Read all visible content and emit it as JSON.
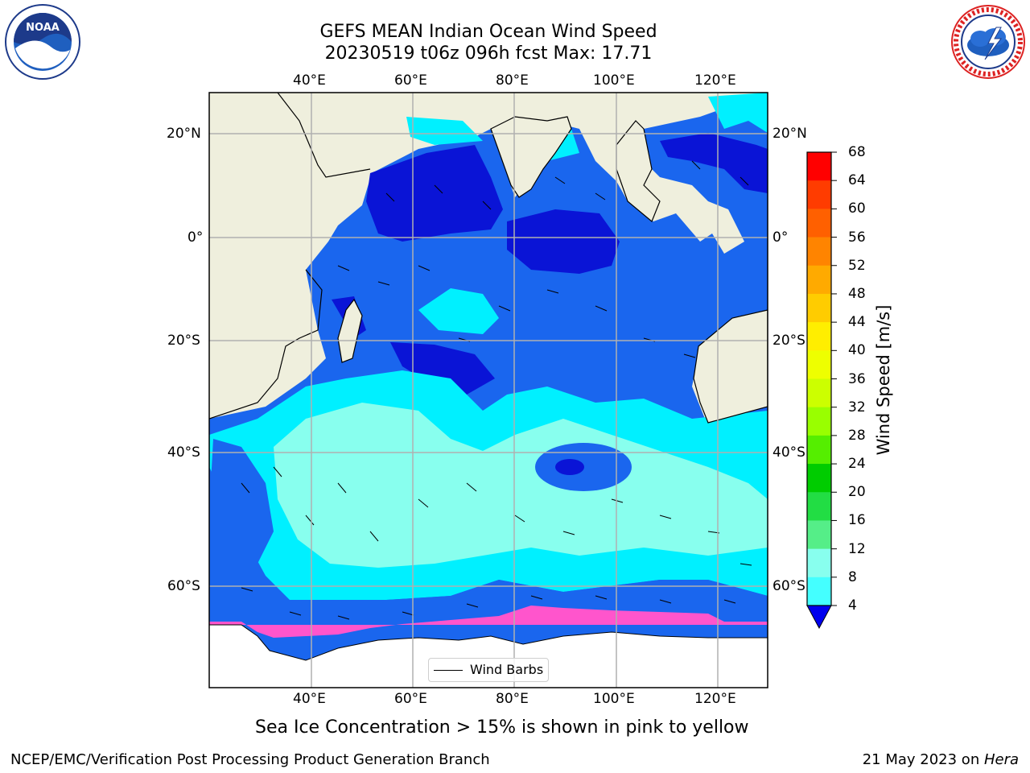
{
  "title": {
    "line1": "GEFS MEAN Indian Ocean Wind Speed",
    "line2": "20230519 t06z 096h fcst   Max: 17.71"
  },
  "axes": {
    "lon_ticks": [
      "40°E",
      "60°E",
      "80°E",
      "100°E",
      "120°E"
    ],
    "lat_ticks": [
      "20°N",
      "0°",
      "20°S",
      "40°S",
      "60°S"
    ]
  },
  "colorbar": {
    "label": "Wind Speed [m/s]",
    "ticks": [
      "68",
      "64",
      "60",
      "56",
      "52",
      "48",
      "44",
      "40",
      "36",
      "32",
      "28",
      "24",
      "20",
      "16",
      "12",
      "8",
      "4"
    ],
    "colors": [
      "#ff0000",
      "#ff3c00",
      "#ff6000",
      "#ff8400",
      "#ffaa00",
      "#ffcc00",
      "#ffee00",
      "#eeff00",
      "#ccff00",
      "#99ff00",
      "#55ee00",
      "#00cc00",
      "#22dd44",
      "#55ee88",
      "#88ffee",
      "#44ffff",
      "#00ffff",
      "#00ddff",
      "#0077ff",
      "#0000ee"
    ]
  },
  "legend": {
    "label": "Wind Barbs"
  },
  "subtitle": "Sea Ice Concentration > 15% is shown in pink to yellow",
  "footer": {
    "left": "NCEP/EMC/Verification Post Processing Product Generation Branch",
    "right_date": "21 May 2023 on ",
    "right_machine": "Hera"
  },
  "logos": {
    "noaa": {
      "text": "NOAA",
      "icon": "noaa-logo-icon"
    },
    "nws": {
      "icon": "nws-logo-icon"
    }
  },
  "palette": {
    "land": "#efefdd",
    "ocean_dark": "#0a14d6",
    "ocean_blue": "#1a66ee",
    "ocean_cyan": "#00f0ff",
    "ocean_light": "#88ffee",
    "ice": "#ff55cc"
  }
}
